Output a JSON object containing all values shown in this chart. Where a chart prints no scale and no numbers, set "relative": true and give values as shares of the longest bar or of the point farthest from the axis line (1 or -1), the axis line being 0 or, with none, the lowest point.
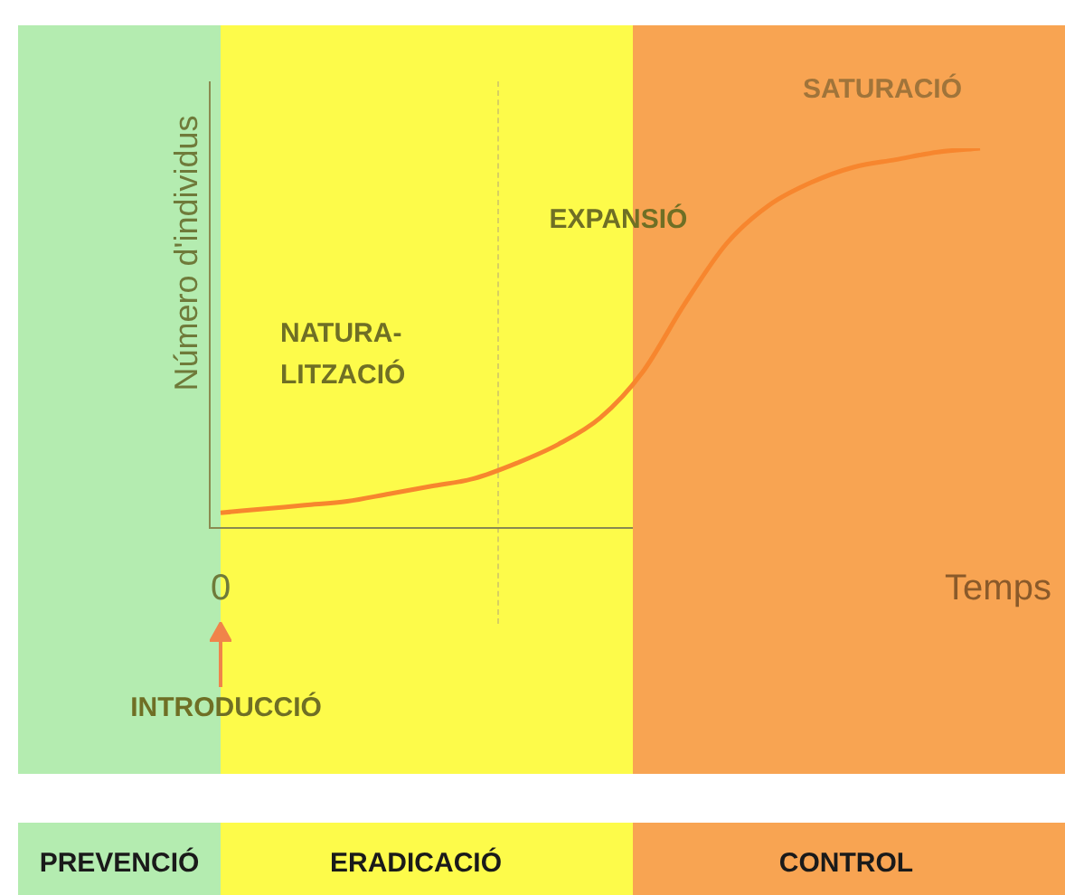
{
  "chart_data": {
    "type": "line",
    "relative": true,
    "xlabel": "Temps",
    "ylabel": "Número d'individus",
    "tick_labels": false,
    "categories": [
      null,
      null,
      null,
      null,
      null,
      null,
      null,
      null,
      null,
      null,
      null,
      null,
      null,
      null,
      null,
      null,
      null,
      null,
      null
    ],
    "series": [
      {
        "color": "#f7862e",
        "values": [
          0.04,
          0.05,
          0.06,
          0.07,
          0.09,
          0.11,
          0.13,
          0.17,
          0.22,
          0.29,
          0.41,
          0.59,
          0.75,
          0.85,
          0.91,
          0.95,
          0.97,
          0.99,
          1
        ]
      }
    ],
    "marker": "none",
    "line_style": "solid",
    "grid": false,
    "legend": false,
    "annotations": [
      "NATURA-\nLITZACIÓ",
      "EXPANSIÓ",
      "SATURACIÓ",
      "INTRODUCCIÓ",
      "PREVENCIÓ",
      "ERADICACIÓ",
      "CONTROL",
      "0"
    ]
  }
}
